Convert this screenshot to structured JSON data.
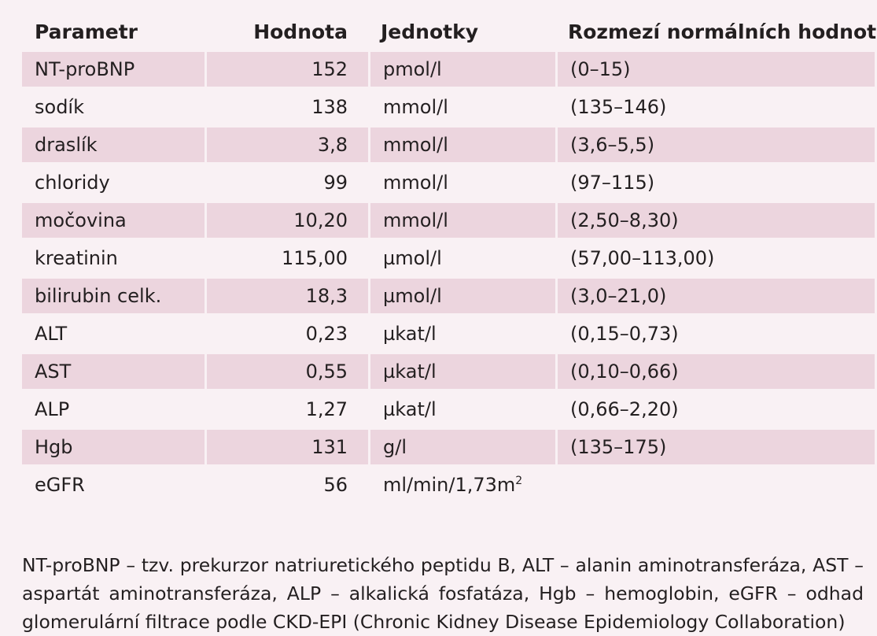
{
  "table": {
    "headers": [
      "Parametr",
      "Hodnota",
      "Jednotky",
      "Rozmezí normálních hodnot"
    ],
    "rows": [
      {
        "param": "NT-proBNP",
        "value": "152",
        "unit": "pmol/l",
        "range": "(0–15)"
      },
      {
        "param": "sodík",
        "value": "138",
        "unit": "mmol/l",
        "range": "(135–146)"
      },
      {
        "param": "draslík",
        "value": "3,8",
        "unit": "mmol/l",
        "range": "(3,6–5,5)"
      },
      {
        "param": "chloridy",
        "value": "99",
        "unit": "mmol/l",
        "range": "(97–115)"
      },
      {
        "param": "močovina",
        "value": "10,20",
        "unit": "mmol/l",
        "range": "(2,50–8,30)"
      },
      {
        "param": "kreatinin",
        "value": "115,00",
        "unit": "µmol/l",
        "range": "(57,00–113,00)"
      },
      {
        "param": "bilirubin celk.",
        "value": "18,3",
        "unit": "µmol/l",
        "range": "(3,0–21,0)"
      },
      {
        "param": "ALT",
        "value": "0,23",
        "unit": "µkat/l",
        "range": "(0,15–0,73)"
      },
      {
        "param": "AST",
        "value": "0,55",
        "unit": "µkat/l",
        "range": "(0,10–0,66)"
      },
      {
        "param": "ALP",
        "value": "1,27",
        "unit": "µkat/l",
        "range": "(0,66–2,20)"
      },
      {
        "param": "Hgb",
        "value": "131",
        "unit": "g/l",
        "range": "(135–175)"
      },
      {
        "param": "eGFR",
        "value": "56",
        "unit": "ml/min/1,73m",
        "unit_sup": "2",
        "range": ""
      }
    ]
  },
  "footnote": "NT-proBNP – tzv. prekurzor natriuretického peptidu B, ALT – alanin aminotransferáza, AST – aspartát aminotransferáza, ALP – alkalická fosfatáza, Hgb – hemoglobin, eGFR – odhad glomerulární filtrace podle CKD-EPI (Chronic Kidney Disease Epidemiology Collaboration)",
  "colors": {
    "page_background": "#f9f1f4",
    "row_shade": "#ecd5de",
    "text": "#231f20"
  }
}
